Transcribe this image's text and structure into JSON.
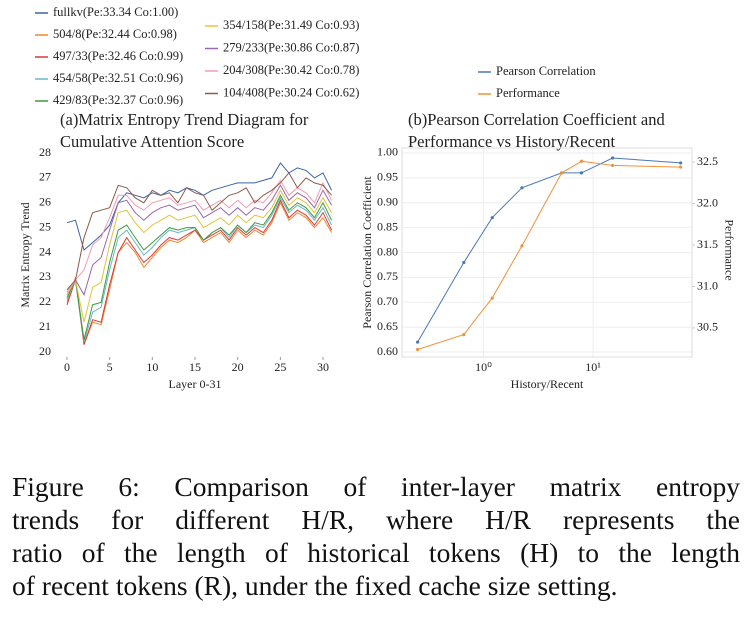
{
  "chart_data": [
    {
      "type": "line",
      "title": [
        "(a)Matrix Entropy Trend Diagram for",
        "Cumulative Attention Score"
      ],
      "xlabel": "Layer 0-31",
      "ylabel": "Matrix Entropy Trend",
      "x": [
        0,
        1,
        2,
        3,
        4,
        5,
        6,
        7,
        8,
        9,
        10,
        11,
        12,
        13,
        14,
        15,
        16,
        17,
        18,
        19,
        20,
        21,
        22,
        23,
        24,
        25,
        26,
        27,
        28,
        29,
        30,
        31
      ],
      "xlim": [
        -1.4,
        31.4
      ],
      "xticks": [
        0,
        5,
        10,
        15,
        20,
        25,
        30
      ],
      "ylim": [
        19.8,
        28
      ],
      "yticks": [
        20,
        21,
        22,
        23,
        24,
        25,
        26,
        27,
        28
      ],
      "grid": false,
      "series": [
        {
          "name": "fullkv(Pe:33.34 Co:1.00)",
          "color": "#3a64a8",
          "values": [
            25.2,
            25.3,
            24.1,
            24.4,
            24.7,
            25.1,
            26.0,
            26.4,
            26.3,
            26.2,
            26.4,
            26.3,
            26.5,
            26.4,
            26.6,
            26.5,
            26.3,
            26.5,
            26.6,
            26.7,
            26.8,
            26.8,
            26.8,
            26.9,
            27.0,
            27.6,
            27.2,
            27.4,
            27.3,
            27.0,
            27.2,
            26.5
          ]
        },
        {
          "name": "504/8(Pe:32.44 Co:0.98)",
          "color": "#f0872e",
          "values": [
            22.0,
            23.0,
            20.3,
            21.2,
            21.1,
            22.5,
            24.0,
            24.4,
            24.0,
            23.4,
            23.8,
            24.2,
            24.5,
            24.4,
            24.6,
            24.9,
            24.4,
            24.6,
            24.8,
            24.4,
            24.9,
            24.6,
            24.9,
            24.7,
            25.2,
            26.0,
            25.3,
            25.6,
            25.4,
            25.0,
            25.4,
            24.8
          ]
        },
        {
          "name": "497/33(Pe:32.46 Co:0.99)",
          "color": "#d9393a",
          "values": [
            21.9,
            22.9,
            20.3,
            21.3,
            21.2,
            22.7,
            24.0,
            24.6,
            24.1,
            23.6,
            23.9,
            24.3,
            24.6,
            24.5,
            24.7,
            24.9,
            24.5,
            24.7,
            24.9,
            24.5,
            25.0,
            24.7,
            25.0,
            24.8,
            25.3,
            26.1,
            25.4,
            25.7,
            25.5,
            25.1,
            25.6,
            24.9
          ]
        },
        {
          "name": "454/58(Pe:32.51 Co:0.96)",
          "color": "#6bb6c4",
          "values": [
            22.1,
            22.9,
            20.4,
            21.6,
            21.8,
            23.3,
            24.6,
            24.9,
            24.4,
            23.9,
            24.2,
            24.6,
            24.9,
            24.8,
            24.9,
            25.0,
            24.5,
            24.8,
            25.0,
            24.6,
            25.1,
            24.8,
            25.1,
            25.0,
            25.5,
            26.2,
            25.6,
            25.9,
            25.7,
            25.3,
            25.8,
            25.1
          ]
        },
        {
          "name": "429/83(Pe:32.37 Co:0.96)",
          "color": "#3d9a3d",
          "values": [
            22.2,
            22.9,
            20.5,
            21.9,
            22.0,
            23.6,
            24.9,
            25.1,
            24.6,
            24.1,
            24.4,
            24.7,
            25.0,
            24.9,
            25.0,
            25.0,
            24.5,
            24.8,
            25.0,
            24.7,
            25.1,
            24.8,
            25.2,
            25.1,
            25.6,
            26.3,
            25.7,
            26.0,
            25.8,
            25.4,
            26.0,
            25.3
          ]
        },
        {
          "name": "354/158(Pe:31.49 Co:0.93)",
          "color": "#e3c23b",
          "values": [
            22.3,
            22.9,
            21.2,
            22.6,
            22.8,
            24.3,
            25.6,
            25.7,
            25.2,
            24.8,
            25.1,
            25.3,
            25.5,
            25.3,
            25.4,
            25.5,
            25.0,
            25.2,
            25.4,
            25.1,
            25.5,
            25.2,
            25.5,
            25.4,
            25.8,
            26.5,
            25.9,
            26.2,
            26.0,
            25.6,
            26.2,
            25.6
          ]
        },
        {
          "name": "279/233(Pe:30.86 Co:0.87)",
          "color": "#9b67b0",
          "values": [
            22.4,
            22.9,
            22.3,
            23.5,
            23.8,
            24.9,
            26.0,
            26.1,
            25.6,
            25.3,
            25.6,
            25.8,
            25.9,
            25.7,
            25.8,
            25.9,
            25.4,
            25.6,
            25.8,
            25.5,
            25.8,
            25.5,
            25.8,
            25.7,
            26.1,
            26.7,
            26.1,
            26.4,
            26.2,
            25.8,
            26.5,
            25.9
          ]
        },
        {
          "name": "204/308(Pe:30.42 Co:0.78)",
          "color": "#f29bb0",
          "values": [
            22.4,
            22.9,
            23.3,
            24.3,
            24.6,
            25.4,
            26.3,
            26.3,
            25.9,
            25.7,
            26.0,
            26.1,
            26.2,
            25.9,
            26.0,
            26.1,
            25.7,
            25.9,
            26.1,
            25.8,
            26.1,
            25.8,
            26.1,
            26.0,
            26.4,
            26.9,
            26.3,
            26.6,
            26.4,
            26.0,
            26.8,
            26.1
          ]
        },
        {
          "name": "104/408(Pe:30.24 Co:0.62)",
          "color": "#8c5a4a",
          "values": [
            22.5,
            22.9,
            24.6,
            25.6,
            25.7,
            25.8,
            26.7,
            26.6,
            26.2,
            26.0,
            26.5,
            26.3,
            26.4,
            26.0,
            26.6,
            26.4,
            26.3,
            25.7,
            26.0,
            26.3,
            26.4,
            26.6,
            26.0,
            26.3,
            26.5,
            26.8,
            27.2,
            26.6,
            27.0,
            26.8,
            26.7,
            26.3
          ]
        }
      ]
    },
    {
      "type": "line",
      "log_x": true,
      "markers": true,
      "title": [
        "(b)Pearson Correlation Coefficient and",
        "Performance vs History/Recent"
      ],
      "xlabel": "History/Recent",
      "ylabel": "Pearson Correlation Coefficient",
      "y2label": "Performance",
      "x": [
        0.25,
        0.66,
        1.2,
        2.24,
        5.17,
        7.83,
        15.06,
        63
      ],
      "xlim": [
        0.18,
        80
      ],
      "xticks": [
        {
          "value": 1,
          "label": "10⁰"
        },
        {
          "value": 10,
          "label": "10¹"
        }
      ],
      "ylim": [
        0.59,
        1.01
      ],
      "yticks": [
        {
          "value": 0.6,
          "label": "0.60"
        },
        0.65,
        {
          "value": 0.7,
          "label": "0.70"
        },
        0.75,
        {
          "value": 0.8,
          "label": "0.80"
        },
        0.85,
        {
          "value": 0.9,
          "label": "0.90"
        },
        0.95,
        {
          "value": 1,
          "label": "1.00"
        }
      ],
      "y2lim": [
        30.15,
        32.67
      ],
      "y2ticks": [
        30.5,
        {
          "value": 31,
          "label": "31.0"
        },
        31.5,
        {
          "value": 32,
          "label": "32.0"
        },
        32.5
      ],
      "grid": true,
      "series": [
        {
          "name": "Pearson Correlation",
          "color": "#4a78b5",
          "values": [
            0.62,
            0.78,
            0.87,
            0.93,
            0.96,
            0.96,
            0.99,
            0.98
          ]
        },
        {
          "name": "Performance",
          "color": "#f0923a",
          "axis": "y2",
          "values": [
            30.24,
            30.42,
            30.86,
            31.49,
            32.37,
            32.51,
            32.46,
            32.44
          ]
        }
      ]
    }
  ],
  "caption": [
    "Figure 6:  Comparison of inter-layer matrix entropy",
    "trends for different H/R, where H/R represents the",
    "ratio of the length of historical tokens (H) to the length",
    "of recent tokens (R), under the fixed cache size setting."
  ]
}
